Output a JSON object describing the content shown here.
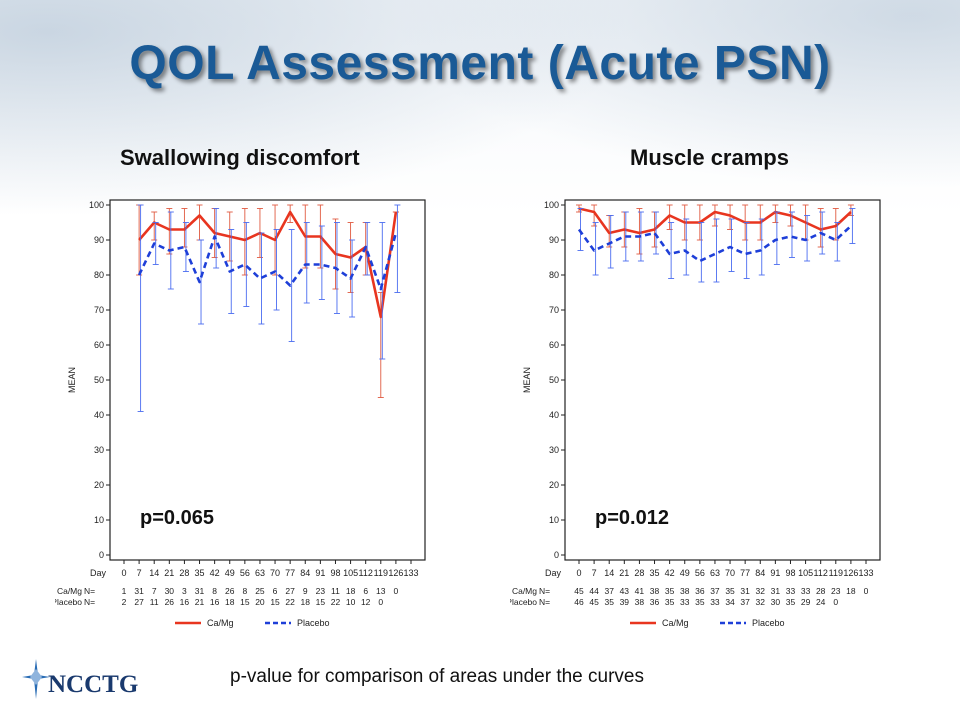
{
  "title": "QOL Assessment (Acute PSN)",
  "footer": "p-value for comparison of areas under the curves",
  "logo": {
    "text": "NCCTG",
    "icon": "star-icon"
  },
  "colors": {
    "title": "#1a5a96",
    "camg": "#e8351f",
    "placebo": "#1e3fd8",
    "errbar_camg": "#e05a40",
    "errbar_placebo": "#4a6cf0"
  },
  "chart_data": [
    {
      "type": "line",
      "title": "Swallowing discomfort",
      "ylabel": "MEAN",
      "ylim": [
        0,
        100
      ],
      "yticks": [
        0,
        10,
        20,
        30,
        40,
        50,
        60,
        70,
        80,
        90,
        100
      ],
      "x_label_row": "Day",
      "x": [
        0,
        7,
        14,
        21,
        28,
        35,
        42,
        49,
        56,
        63,
        70,
        77,
        84,
        91,
        98,
        105,
        112,
        119,
        126,
        133
      ],
      "xtick_labels": [
        "0",
        "7",
        "14",
        "21",
        "28",
        "35",
        "42",
        "49",
        "56",
        "63",
        "70",
        "77",
        "84",
        "91",
        "98",
        "105",
        "112",
        "119",
        "126",
        "133"
      ],
      "annotation": "p=0.065",
      "series": [
        {
          "name": "Ca/Mg",
          "style": "solid",
          "x": [
            7,
            14,
            21,
            28,
            35,
            42,
            49,
            56,
            63,
            70,
            77,
            84,
            91,
            98,
            105,
            112,
            119,
            126
          ],
          "values": [
            90,
            95,
            93,
            93,
            97,
            92,
            91,
            90,
            92,
            90,
            98,
            91,
            91,
            86,
            85,
            88,
            68,
            98
          ],
          "upper": [
            100,
            98,
            99,
            99,
            100,
            99,
            98,
            99,
            99,
            100,
            100,
            100,
            100,
            96,
            95,
            95,
            75,
            98
          ],
          "lower": [
            80,
            90,
            86,
            88,
            90,
            85,
            84,
            80,
            85,
            80,
            95,
            82,
            82,
            76,
            75,
            80,
            45,
            98
          ]
        },
        {
          "name": "Placebo",
          "style": "dashed",
          "x": [
            7,
            14,
            21,
            28,
            35,
            42,
            49,
            56,
            63,
            70,
            77,
            84,
            91,
            98,
            105,
            112,
            119,
            126
          ],
          "values": [
            80,
            89,
            87,
            88,
            78,
            91,
            81,
            83,
            79,
            81,
            77,
            83,
            83,
            82,
            79,
            88,
            76,
            92
          ],
          "upper": [
            100,
            95,
            98,
            95,
            90,
            99,
            93,
            95,
            92,
            93,
            93,
            95,
            94,
            95,
            90,
            95,
            95,
            100
          ],
          "lower": [
            41,
            83,
            76,
            81,
            66,
            82,
            69,
            71,
            66,
            70,
            61,
            72,
            73,
            69,
            68,
            80,
            56,
            75
          ]
        }
      ],
      "n_rows": [
        {
          "label": "Ca/Mg",
          "prefix": "N=",
          "values": [
            "1",
            "31",
            "7",
            "30",
            "3",
            "31",
            "8",
            "26",
            "8",
            "25",
            "6",
            "27",
            "9",
            "23",
            "11",
            "18",
            "6",
            "13",
            "0"
          ]
        },
        {
          "label": "Placebo",
          "prefix": "N=",
          "values": [
            "2",
            "27",
            "11",
            "26",
            "16",
            "21",
            "16",
            "18",
            "15",
            "20",
            "15",
            "22",
            "18",
            "15",
            "22",
            "10",
            "12",
            "0"
          ]
        }
      ],
      "legend": [
        "Ca/Mg",
        "Placebo"
      ]
    },
    {
      "type": "line",
      "title": "Muscle cramps",
      "ylabel": "MEAN",
      "ylim": [
        0,
        100
      ],
      "yticks": [
        0,
        10,
        20,
        30,
        40,
        50,
        60,
        70,
        80,
        90,
        100
      ],
      "x_label_row": "Day",
      "x": [
        0,
        7,
        14,
        21,
        28,
        35,
        42,
        49,
        56,
        63,
        70,
        77,
        84,
        91,
        98,
        105,
        112,
        119,
        126,
        133
      ],
      "xtick_labels": [
        "0",
        "7",
        "14",
        "21",
        "28",
        "35",
        "42",
        "49",
        "56",
        "63",
        "70",
        "77",
        "84",
        "91",
        "98",
        "105",
        "112",
        "119",
        "126",
        "133"
      ],
      "annotation": "p=0.012",
      "series": [
        {
          "name": "Ca/Mg",
          "style": "solid",
          "x": [
            0,
            7,
            14,
            21,
            28,
            35,
            42,
            49,
            56,
            63,
            70,
            77,
            84,
            91,
            98,
            105,
            112,
            119,
            126
          ],
          "values": [
            99,
            98,
            92,
            93,
            92,
            93,
            97,
            95,
            95,
            98,
            97,
            95,
            95,
            98,
            97,
            95,
            93,
            94,
            98
          ],
          "upper": [
            100,
            100,
            97,
            98,
            99,
            98,
            100,
            100,
            100,
            100,
            100,
            100,
            100,
            100,
            100,
            100,
            99,
            99,
            100
          ],
          "lower": [
            98,
            94,
            88,
            88,
            86,
            88,
            93,
            90,
            90,
            94,
            93,
            90,
            90,
            95,
            94,
            90,
            88,
            90,
            97
          ]
        },
        {
          "name": "Placebo",
          "style": "dashed",
          "x": [
            0,
            7,
            14,
            21,
            28,
            35,
            42,
            49,
            56,
            63,
            70,
            77,
            84,
            91,
            98,
            105,
            112,
            119,
            126
          ],
          "values": [
            93,
            87,
            89,
            91,
            91,
            92,
            86,
            87,
            84,
            86,
            88,
            86,
            87,
            90,
            91,
            90,
            92,
            90,
            94
          ],
          "upper": [
            99,
            95,
            97,
            98,
            98,
            98,
            95,
            96,
            95,
            96,
            96,
            95,
            96,
            98,
            98,
            97,
            98,
            95,
            99
          ],
          "lower": [
            87,
            80,
            82,
            84,
            84,
            86,
            79,
            80,
            78,
            78,
            81,
            79,
            80,
            83,
            85,
            84,
            86,
            84,
            89
          ]
        }
      ],
      "n_rows": [
        {
          "label": "Ca/Mg",
          "prefix": "N=",
          "values": [
            "45",
            "44",
            "37",
            "43",
            "41",
            "38",
            "35",
            "38",
            "36",
            "37",
            "35",
            "31",
            "32",
            "31",
            "33",
            "33",
            "28",
            "23",
            "18",
            "0"
          ]
        },
        {
          "label": "Placebo",
          "prefix": "N=",
          "values": [
            "46",
            "45",
            "35",
            "39",
            "38",
            "36",
            "35",
            "33",
            "35",
            "33",
            "34",
            "37",
            "32",
            "30",
            "35",
            "29",
            "24",
            "0"
          ]
        }
      ],
      "legend": [
        "Ca/Mg",
        "Placebo"
      ]
    }
  ]
}
